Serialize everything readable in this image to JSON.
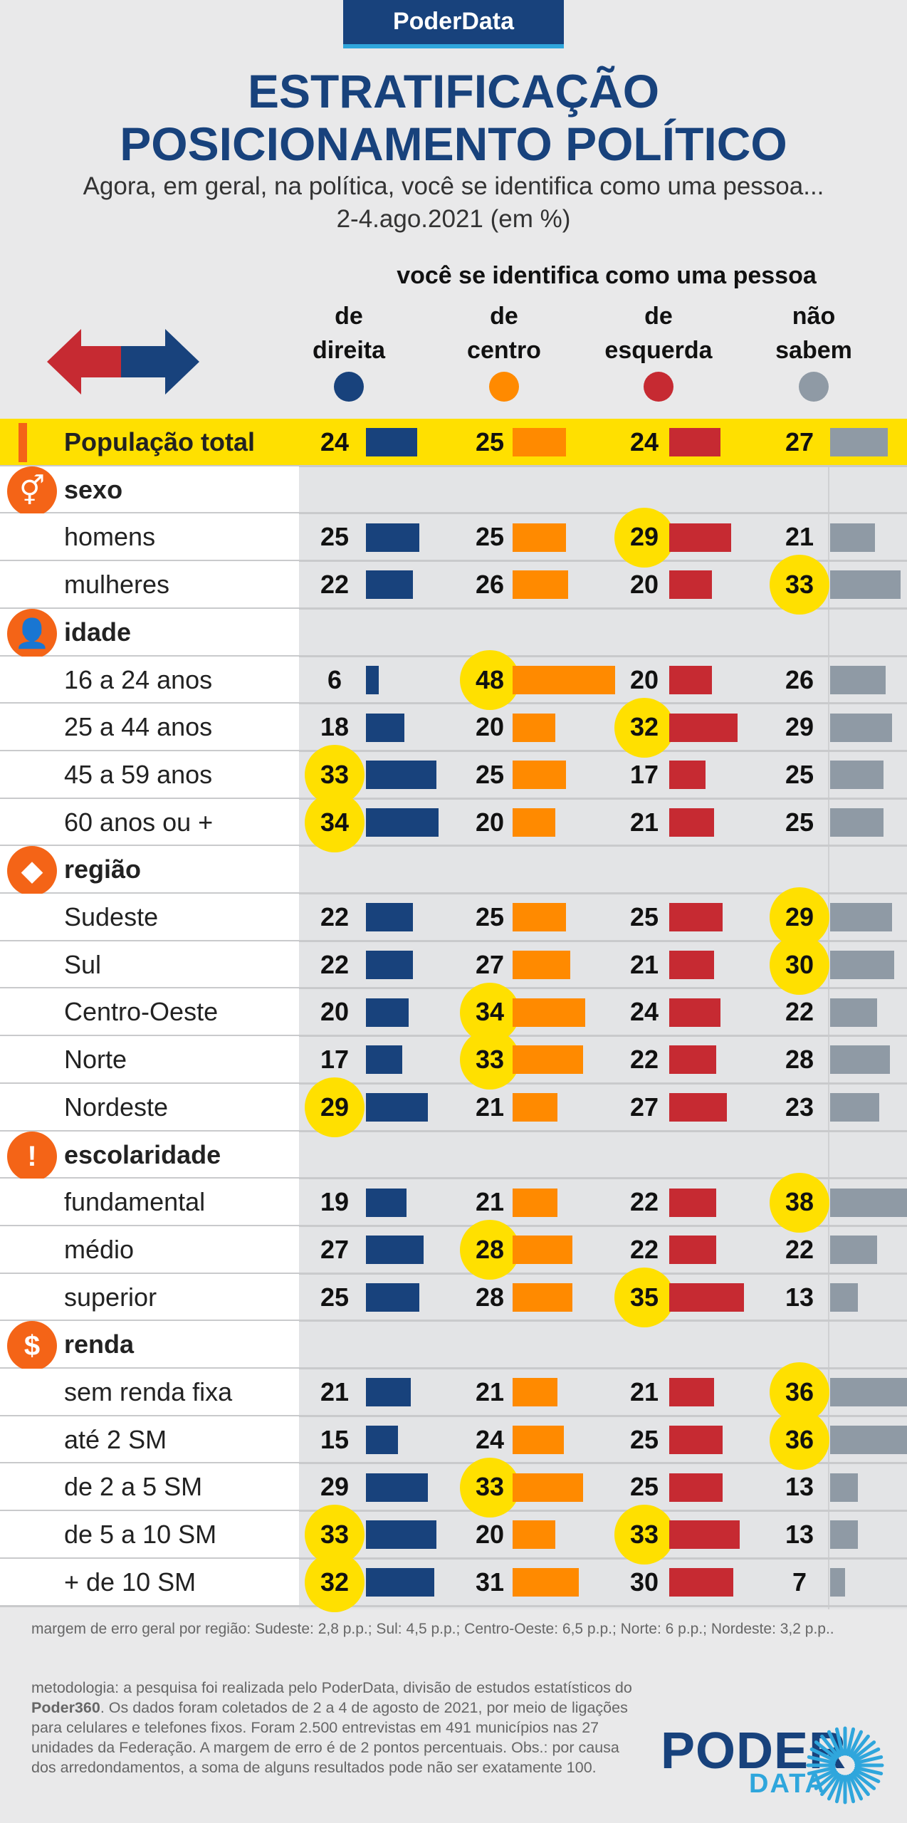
{
  "brand": "PoderData",
  "title_line1": "ESTRATIFICAÇÃO",
  "title_line2": "POSICIONAMENTO POLÍTICO",
  "subtitle": "Agora, em geral, na política, você se identifica como uma pessoa...",
  "date": "2-4.ago.2021 (em %)",
  "colors": {
    "direita": "#18427c",
    "centro": "#ff8a00",
    "esquerda": "#c62a32",
    "nao_sabem": "#8f9aa5",
    "highlight": "#ffe000",
    "total_row": "#ffe000",
    "accent": "#f46417"
  },
  "chart_data": {
    "type": "bar",
    "title": "ESTRATIFICAÇÃO POSICIONAMENTO POLÍTICO",
    "column_group": "você se identifica como uma pessoa",
    "series": [
      {
        "key": "direita",
        "name": "de direita",
        "line1": "de",
        "line2": "direita",
        "color": "#18427c"
      },
      {
        "key": "centro",
        "name": "de centro",
        "line1": "de",
        "line2": "centro",
        "color": "#ff8a00"
      },
      {
        "key": "esquerda",
        "name": "de esquerda",
        "line1": "de",
        "line2": "esquerda",
        "color": "#c62a32"
      },
      {
        "key": "nao_sabem",
        "name": "não sabem",
        "line1": "não",
        "line2": "sabem",
        "color": "#8f9aa5"
      }
    ],
    "rows": [
      {
        "type": "total",
        "label": "População total",
        "values": [
          24,
          25,
          24,
          27
        ],
        "highlight": []
      },
      {
        "type": "category",
        "label": "sexo",
        "icon": "gender-icon"
      },
      {
        "type": "data",
        "label": "homens",
        "values": [
          25,
          25,
          29,
          21
        ],
        "highlight": [
          2
        ]
      },
      {
        "type": "data",
        "label": "mulheres",
        "values": [
          22,
          26,
          20,
          33
        ],
        "highlight": [
          3
        ]
      },
      {
        "type": "category",
        "label": "idade",
        "icon": "person-icon"
      },
      {
        "type": "data",
        "label": "16 a 24 anos",
        "values": [
          6,
          48,
          20,
          26
        ],
        "highlight": [
          1
        ]
      },
      {
        "type": "data",
        "label": "25 a 44 anos",
        "values": [
          18,
          20,
          32,
          29
        ],
        "highlight": [
          2
        ]
      },
      {
        "type": "data",
        "label": "45 a 59 anos",
        "values": [
          33,
          25,
          17,
          25
        ],
        "highlight": [
          0
        ]
      },
      {
        "type": "data",
        "label": "60 anos ou +",
        "values": [
          34,
          20,
          21,
          25
        ],
        "highlight": [
          0
        ]
      },
      {
        "type": "category",
        "label": "região",
        "icon": "brazil-map-icon"
      },
      {
        "type": "data",
        "label": "Sudeste",
        "values": [
          22,
          25,
          25,
          29
        ],
        "highlight": [
          3
        ]
      },
      {
        "type": "data",
        "label": "Sul",
        "values": [
          22,
          27,
          21,
          30
        ],
        "highlight": [
          3
        ]
      },
      {
        "type": "data",
        "label": "Centro-Oeste",
        "values": [
          20,
          34,
          24,
          22
        ],
        "highlight": [
          1
        ]
      },
      {
        "type": "data",
        "label": "Norte",
        "values": [
          17,
          33,
          22,
          28
        ],
        "highlight": [
          1
        ]
      },
      {
        "type": "data",
        "label": "Nordeste",
        "values": [
          29,
          21,
          27,
          23
        ],
        "highlight": [
          0
        ]
      },
      {
        "type": "category",
        "label": "escolaridade",
        "icon": "exclamation-icon"
      },
      {
        "type": "data",
        "label": "fundamental",
        "values": [
          19,
          21,
          22,
          38
        ],
        "highlight": [
          3
        ]
      },
      {
        "type": "data",
        "label": "médio",
        "values": [
          27,
          28,
          22,
          22
        ],
        "highlight": [
          1
        ]
      },
      {
        "type": "data",
        "label": "superior",
        "values": [
          25,
          28,
          35,
          13
        ],
        "highlight": [
          2
        ]
      },
      {
        "type": "category",
        "label": "renda",
        "icon": "dollar-icon"
      },
      {
        "type": "data",
        "label": "sem renda fixa",
        "values": [
          21,
          21,
          21,
          36
        ],
        "highlight": [
          3
        ]
      },
      {
        "type": "data",
        "label": "até 2 SM",
        "values": [
          15,
          24,
          25,
          36
        ],
        "highlight": [
          3
        ]
      },
      {
        "type": "data",
        "label": "de 2 a 5 SM",
        "values": [
          29,
          33,
          25,
          13
        ],
        "highlight": [
          1
        ]
      },
      {
        "type": "data",
        "label": "de 5 a 10 SM",
        "values": [
          33,
          20,
          33,
          13
        ],
        "highlight": [
          0,
          2
        ]
      },
      {
        "type": "data",
        "label": "+ de 10 SM",
        "values": [
          32,
          31,
          30,
          7
        ],
        "highlight": [
          0
        ]
      }
    ]
  },
  "footer": {
    "margin_note": "margem de erro geral por região: Sudeste: 2,8 p.p.; Sul: 4,5 p.p.; Centro-Oeste: 6,5 p.p.; Norte: 6 p.p.; Nordeste: 3,2 p.p..",
    "method_before": "metodologia: a pesquisa foi realizada pelo PoderData, divisão de estudos estatísticos do ",
    "method_bold": "Poder360",
    "method_after": ". Os dados foram coletados de 2 a 4 de agosto de 2021, por meio de ligações para celulares e telefones fixos. Foram 2.500 entrevistas em 491 municípios nas 27 unidades da Federação. A margem de erro é de 2 pontos percentuais. Obs.: por causa dos arredondamentos, a soma de alguns resultados pode não ser exatamente 100.",
    "logo_top": "PODER",
    "logo_bottom": "DATA"
  }
}
